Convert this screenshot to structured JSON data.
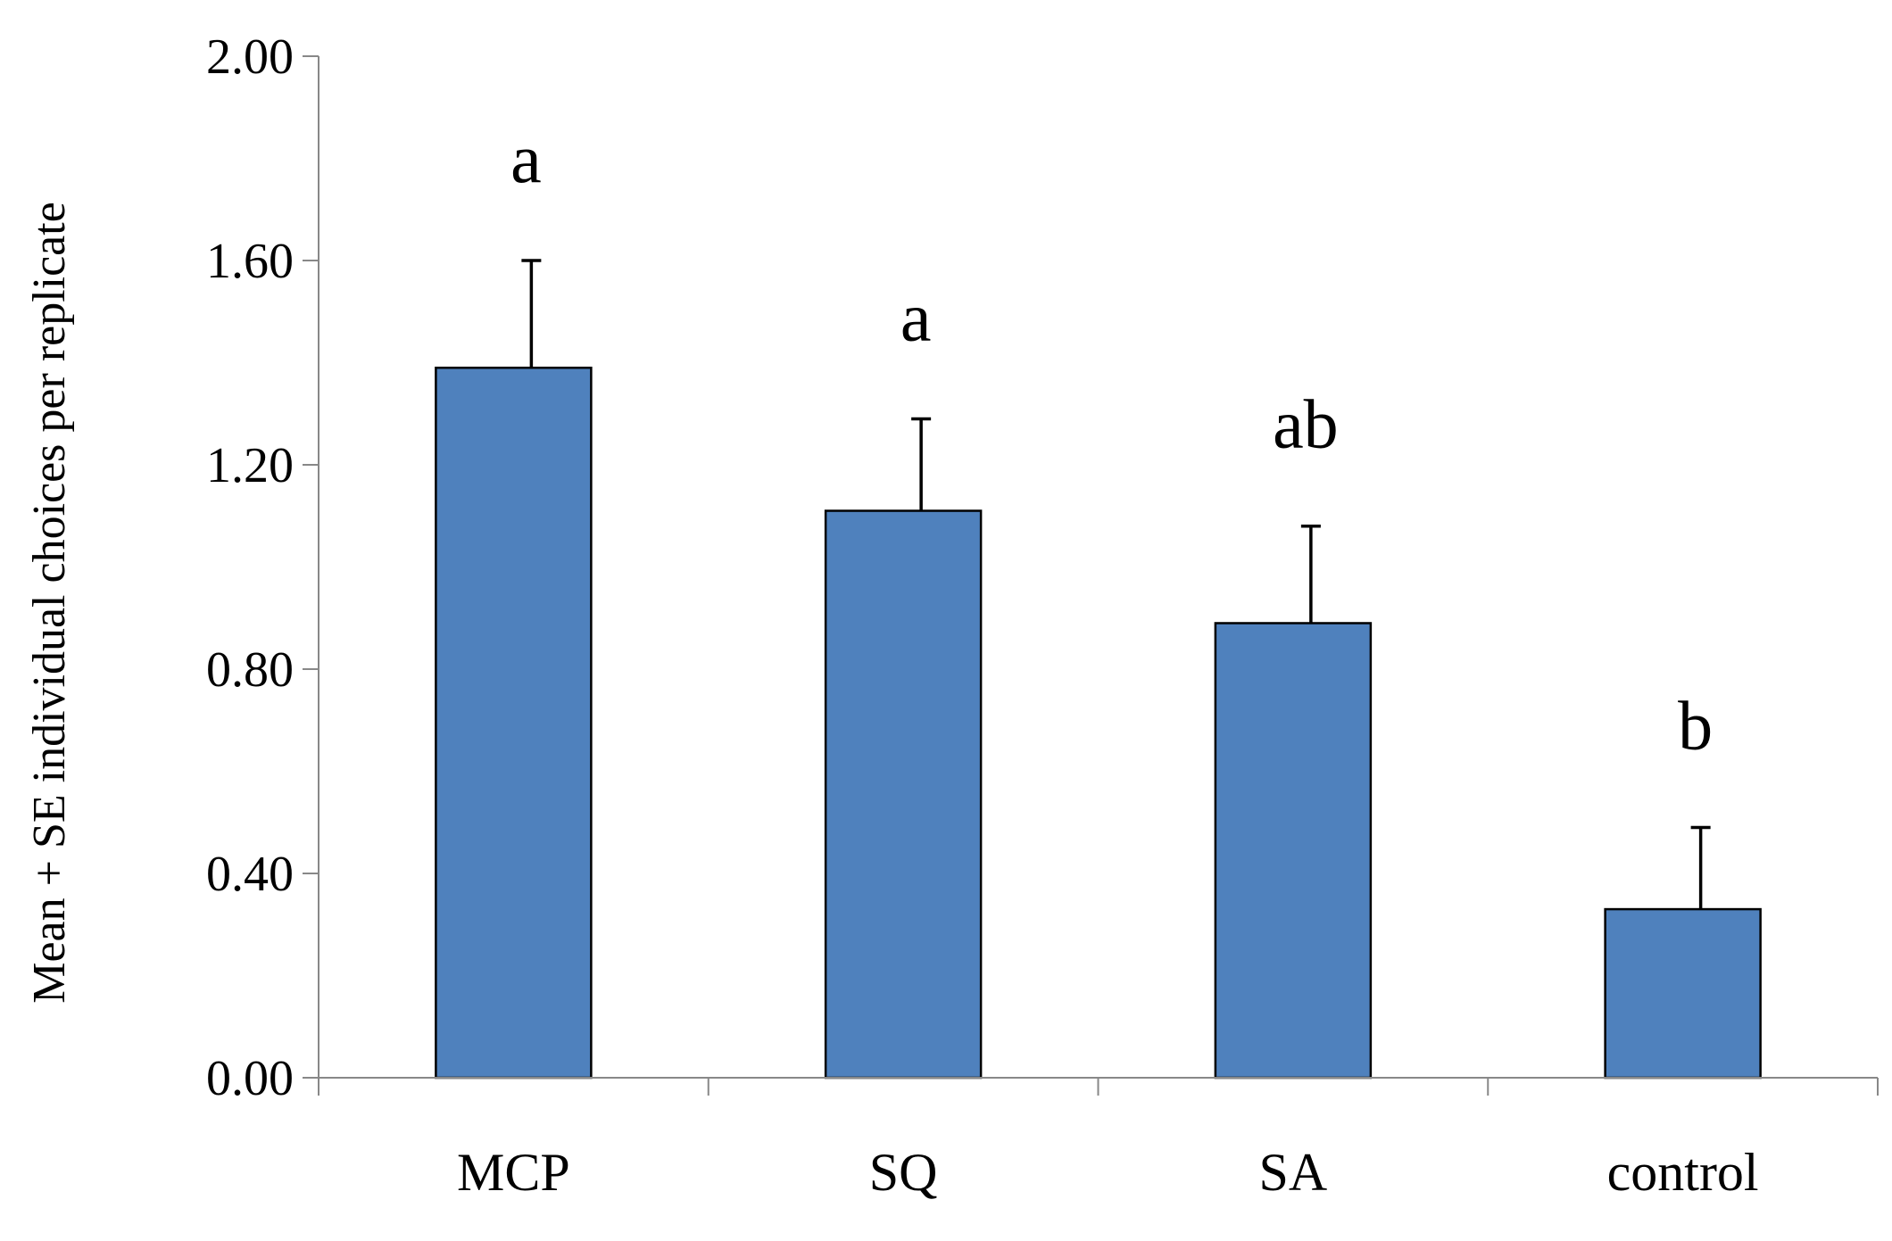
{
  "chart_data": {
    "type": "bar",
    "title": "",
    "xlabel": "",
    "ylabel": "Mean + SE individual choices per replicate",
    "categories": [
      "MCP",
      "SQ",
      "SA",
      "control"
    ],
    "values": [
      1.39,
      1.11,
      0.89,
      0.33
    ],
    "errors": [
      0.21,
      0.18,
      0.19,
      0.16
    ],
    "significance_letters": [
      "a",
      "a",
      "ab",
      "b"
    ],
    "ylim": [
      0,
      2
    ],
    "yticks": [
      0,
      0.4,
      0.8,
      1.2,
      1.6,
      2.0
    ],
    "ytick_labels": [
      "0.00",
      "0.40",
      "0.80",
      "1.20",
      "1.60",
      "2.00"
    ],
    "grid": false,
    "legend": "none",
    "bar_color": "#4f81bd",
    "bar_edge_color": "#000000"
  }
}
